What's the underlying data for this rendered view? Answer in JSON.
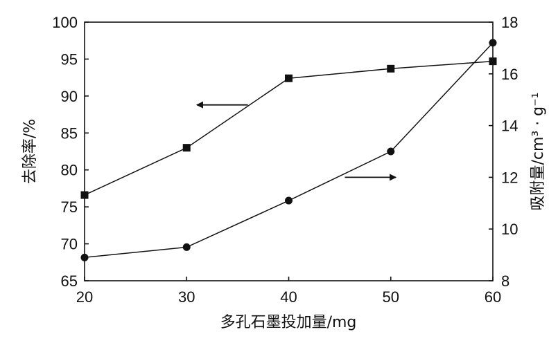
{
  "chart_data": {
    "type": "line",
    "x": [
      20,
      30,
      40,
      50,
      60
    ],
    "xlabel": "多孔石墨投加量/mg",
    "xlim": [
      20,
      60
    ],
    "xticks": [
      "20",
      "30",
      "40",
      "50",
      "60"
    ],
    "ylabel_left": "去除率/%",
    "ylim_left": [
      65,
      100
    ],
    "yticks_left": [
      "65",
      "70",
      "75",
      "80",
      "85",
      "90",
      "95",
      "100"
    ],
    "ylabel_right": "吸附量/cm³ · g⁻¹",
    "ylim_right": [
      8,
      18
    ],
    "yticks_right": [
      "8",
      "10",
      "12",
      "14",
      "16",
      "18"
    ],
    "grid": false,
    "legend": "none",
    "series": [
      {
        "axis": "left",
        "marker": "square",
        "values": [
          76.6,
          83.0,
          92.4,
          93.7,
          94.7
        ]
      },
      {
        "axis": "right",
        "marker": "circle",
        "values": [
          8.9,
          9.3,
          11.1,
          13.0,
          17.2
        ]
      }
    ],
    "annotations": [
      {
        "type": "arrow",
        "direction": "left",
        "series_axis": "left",
        "x_from": 36,
        "x_to": 31,
        "y": 88.8
      },
      {
        "type": "arrow",
        "direction": "right",
        "series_axis": "right",
        "x_from": 45.5,
        "x_to": 50.5,
        "y": 12.0
      }
    ]
  }
}
